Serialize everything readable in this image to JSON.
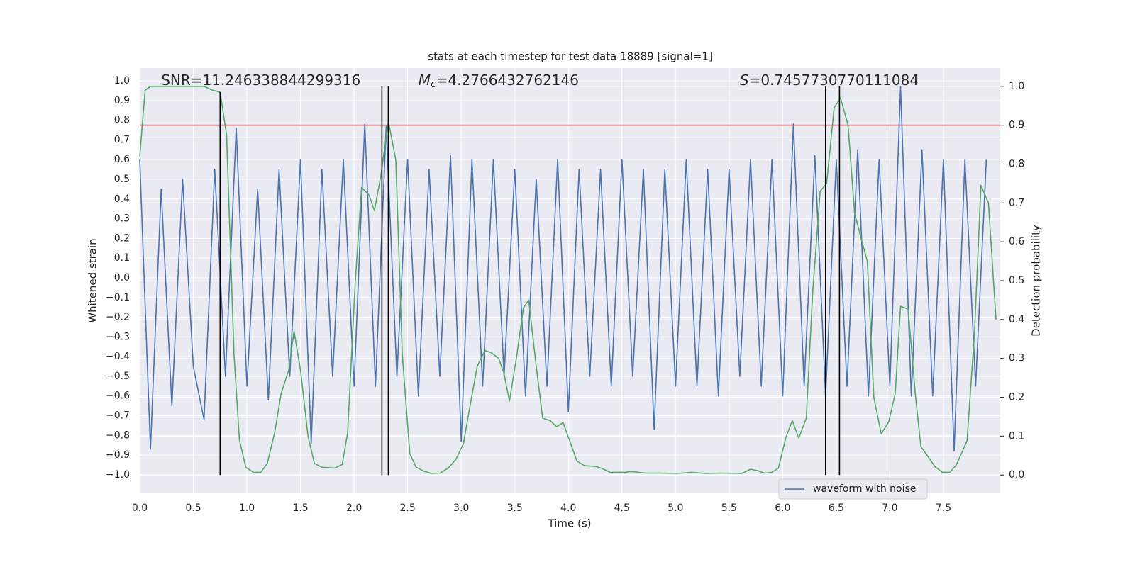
{
  "chart_data": {
    "type": "line",
    "title": "stats at each timestep for test data 18889 [signal=1]",
    "xlabel": "Time (s)",
    "ylabel": "Whitened strain",
    "y2label": "Detection probability",
    "annotations": [
      {
        "text": "SNR=11.246338844299316",
        "x": 0.2
      },
      {
        "math": "M",
        "sub": "c",
        "text": "=4.2766432762146",
        "x": 2.6
      },
      {
        "math": "S",
        "text": "=0.7457730770111084",
        "x": 5.6
      }
    ],
    "xlim": [
      0,
      8.03
    ],
    "ylim": [
      -1.094,
      1.065
    ],
    "y2lim": [
      -0.047,
      1.047
    ],
    "xticks": [
      {
        "value": 0,
        "label": "0.0"
      },
      0.5,
      {
        "value": 1,
        "label": "1.0"
      },
      1.5,
      {
        "value": 2,
        "label": "2.0"
      },
      2.5,
      {
        "value": 3,
        "label": "3.0"
      },
      3.5,
      {
        "value": 4,
        "label": "4.0"
      },
      4.5,
      {
        "value": 5,
        "label": "5.0"
      },
      5.5,
      {
        "value": 6,
        "label": "6.0"
      },
      6.5,
      {
        "value": 7,
        "label": "7.0"
      },
      7.5
    ],
    "yticks": [
      {
        "value": -1,
        "label": "−1.0"
      },
      {
        "value": -0.9,
        "label": "−0.9"
      },
      {
        "value": -0.8,
        "label": "−0.8"
      },
      {
        "value": -0.7,
        "label": "−0.7"
      },
      {
        "value": -0.6,
        "label": "−0.6"
      },
      {
        "value": -0.5,
        "label": "−0.5"
      },
      {
        "value": -0.4,
        "label": "−0.4"
      },
      {
        "value": -0.3,
        "label": "−0.3"
      },
      {
        "value": -0.2,
        "label": "−0.2"
      },
      {
        "value": -0.1,
        "label": "−0.1"
      },
      {
        "value": 0,
        "label": "0.0"
      },
      0.1,
      0.2,
      0.3,
      0.4,
      0.5,
      0.6,
      0.7,
      0.8,
      0.9,
      {
        "value": 1,
        "label": "1.0"
      }
    ],
    "y2ticks": [
      {
        "value": 0,
        "label": "0.0"
      },
      0.1,
      0.2,
      0.3,
      0.4,
      0.5,
      0.6,
      0.7,
      0.8,
      0.9,
      {
        "value": 1,
        "label": "1.0"
      }
    ],
    "grid": true,
    "legend": "lower right",
    "series": [
      {
        "name": "waveform with noise",
        "color": "#4c72b0",
        "x": [
          0,
          0.1,
          0.2,
          0.3,
          0.4,
          0.5,
          0.6,
          0.7,
          0.8,
          0.9,
          1,
          1.1,
          1.2,
          1.3,
          1.4,
          1.5,
          1.6,
          1.7,
          1.8,
          1.9,
          2,
          2.1,
          2.2,
          2.3,
          2.4,
          2.5,
          2.6,
          2.7,
          2.8,
          2.9,
          3,
          3.1,
          3.2,
          3.3,
          3.4,
          3.5,
          3.6,
          3.7,
          3.8,
          3.9,
          4,
          4.1,
          4.2,
          4.3,
          4.4,
          4.5,
          4.6,
          4.7,
          4.8,
          4.9,
          5,
          5.1,
          5.2,
          5.3,
          5.4,
          5.5,
          5.6,
          5.7,
          5.8,
          5.9,
          6,
          6.1,
          6.2,
          6.3,
          6.4,
          6.5,
          6.6,
          6.7,
          6.8,
          6.9,
          7,
          7.1,
          7.2,
          7.3,
          7.4,
          7.5,
          7.6,
          7.7,
          7.8,
          7.9
        ],
        "values": [
          0.6,
          -0.87,
          0.45,
          -0.65,
          0.5,
          -0.45,
          -0.72,
          0.55,
          -0.5,
          0.76,
          -0.55,
          0.45,
          -0.62,
          0.55,
          -0.5,
          0.6,
          -0.84,
          0.55,
          -0.5,
          0.6,
          -0.55,
          0.78,
          -0.55,
          0.77,
          -0.5,
          0.6,
          -0.6,
          0.55,
          -0.5,
          0.62,
          -0.83,
          0.6,
          -0.55,
          0.6,
          -0.5,
          0.55,
          -0.6,
          0.5,
          -0.55,
          0.6,
          -0.68,
          0.55,
          -0.5,
          0.55,
          -0.55,
          0.6,
          -0.5,
          0.55,
          -0.77,
          0.55,
          -0.55,
          0.6,
          -0.55,
          0.55,
          -0.6,
          0.55,
          -0.5,
          0.6,
          -0.55,
          0.6,
          -0.6,
          0.78,
          -0.55,
          0.62,
          -0.6,
          0.6,
          -0.55,
          0.65,
          -0.6,
          0.6,
          -0.55,
          0.97,
          -0.6,
          0.65,
          -0.6,
          0.6,
          -0.88,
          0.6,
          -0.55,
          0.6
        ]
      },
      {
        "color": "#55a868",
        "axis": "y2",
        "x": [
          0,
          0.05,
          0.1,
          0.6,
          0.68,
          0.75,
          0.81,
          0.88,
          0.93,
          0.99,
          1.06,
          1.13,
          1.19,
          1.26,
          1.32,
          1.39,
          1.44,
          1.5,
          1.57,
          1.63,
          1.7,
          1.82,
          1.89,
          1.94,
          2.01,
          2.07,
          2.14,
          2.19,
          2.25,
          2.32,
          2.39,
          2.45,
          2.52,
          2.58,
          2.65,
          2.72,
          2.8,
          2.88,
          2.95,
          3.02,
          3.09,
          3.15,
          3.22,
          3.28,
          3.35,
          3.4,
          3.45,
          3.52,
          3.58,
          3.63,
          3.7,
          3.76,
          3.83,
          3.89,
          3.95,
          4.01,
          4.08,
          4.15,
          4.26,
          4.32,
          4.39,
          4.52,
          4.59,
          4.72,
          4.85,
          5.02,
          5.15,
          5.28,
          5.42,
          5.62,
          5.7,
          5.77,
          5.83,
          5.9,
          5.96,
          6.03,
          6.09,
          6.15,
          6.22,
          6.28,
          6.35,
          6.41,
          6.48,
          6.54,
          6.61,
          6.67,
          6.74,
          6.79,
          6.85,
          6.92,
          6.99,
          7.05,
          7.1,
          7.17,
          7.24,
          7.29,
          7.36,
          7.42,
          7.49,
          7.56,
          7.62,
          7.72,
          7.79,
          7.85,
          7.92,
          7.99
        ],
        "values": [
          0.82,
          0.99,
          1,
          1,
          0.99,
          0.985,
          0.875,
          0.31,
          0.09,
          0.02,
          0.007,
          0.007,
          0.03,
          0.11,
          0.21,
          0.27,
          0.37,
          0.27,
          0.1,
          0.03,
          0.02,
          0.018,
          0.027,
          0.11,
          0.49,
          0.74,
          0.72,
          0.68,
          0.77,
          0.91,
          0.81,
          0.31,
          0.055,
          0.02,
          0.01,
          0.004,
          0.005,
          0.018,
          0.04,
          0.08,
          0.19,
          0.28,
          0.32,
          0.315,
          0.3,
          0.26,
          0.19,
          0.31,
          0.43,
          0.45,
          0.28,
          0.146,
          0.14,
          0.124,
          0.135,
          0.09,
          0.036,
          0.024,
          0.022,
          0.016,
          0.007,
          0.007,
          0.009,
          0.005,
          0.005,
          0.004,
          0.007,
          0.004,
          0.005,
          0.004,
          0.015,
          0.011,
          0.005,
          0.007,
          0.018,
          0.097,
          0.14,
          0.095,
          0.146,
          0.47,
          0.73,
          0.75,
          0.945,
          0.97,
          0.9,
          0.675,
          0.6,
          0.55,
          0.2,
          0.106,
          0.137,
          0.21,
          0.434,
          0.427,
          0.2,
          0.073,
          0.046,
          0.022,
          0.007,
          0.007,
          0.026,
          0.088,
          0.365,
          0.745,
          0.7,
          0.4
        ]
      }
    ],
    "hline": {
      "value": 0.9,
      "axis": "y2",
      "color": "#c44e52"
    },
    "vlines": {
      "x": [
        0.75,
        2.26,
        2.32,
        6.4,
        6.53
      ],
      "ymin": [
        0,
        0,
        0,
        0,
        0
      ],
      "ymax": [
        0.985,
        1,
        1,
        1,
        1
      ],
      "axis": "y2",
      "color": "#000000"
    }
  }
}
